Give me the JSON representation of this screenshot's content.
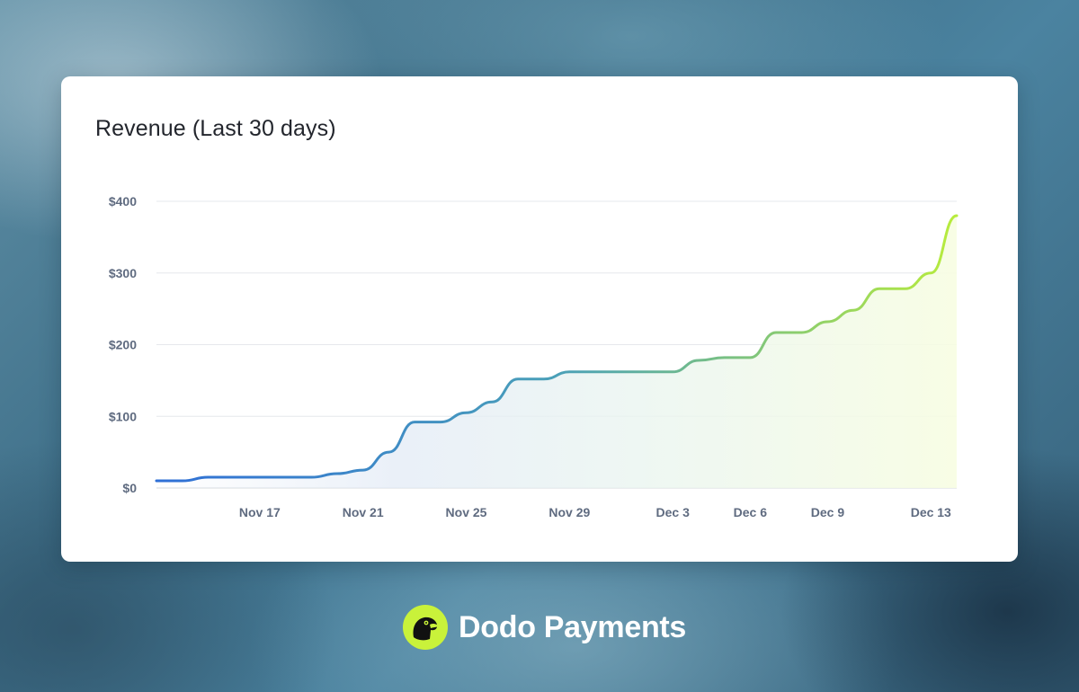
{
  "card": {
    "title": "Revenue (Last 30 days)"
  },
  "brand": {
    "name": "Dodo Payments",
    "logo_icon": "dodo-bird-logo-icon",
    "accent_color": "#c9f23a"
  },
  "chart_data": {
    "type": "area",
    "title": "Revenue (Last 30 days)",
    "xlabel": "",
    "ylabel": "",
    "x_range": [
      "Nov 13",
      "Dec 14"
    ],
    "ylim": [
      0,
      400
    ],
    "yticks": [
      0,
      100,
      200,
      300,
      400
    ],
    "ytick_labels": [
      "$0",
      "$100",
      "$200",
      "$300",
      "$400"
    ],
    "xticks": [
      "Nov 17",
      "Nov 21",
      "Nov 25",
      "Nov 29",
      "Dec 3",
      "Dec 6",
      "Dec 9",
      "Dec 13"
    ],
    "grid": "horizontal",
    "legend": "none",
    "line_gradient": [
      "#2f6fd6",
      "#4aa0b8",
      "#b8ec3c"
    ],
    "series": [
      {
        "x": [
          "Nov 13",
          "Nov 14",
          "Nov 15",
          "Nov 16",
          "Nov 17",
          "Nov 18",
          "Nov 19",
          "Nov 20",
          "Nov 21",
          "Nov 22",
          "Nov 23",
          "Nov 24",
          "Nov 25",
          "Nov 26",
          "Nov 27",
          "Nov 28",
          "Nov 29",
          "Nov 30",
          "Dec 1",
          "Dec 2",
          "Dec 3",
          "Dec 4",
          "Dec 5",
          "Dec 6",
          "Dec 7",
          "Dec 8",
          "Dec 9",
          "Dec 10",
          "Dec 11",
          "Dec 12",
          "Dec 13",
          "Dec 14"
        ],
        "values": [
          10,
          10,
          15,
          15,
          15,
          15,
          15,
          20,
          25,
          50,
          92,
          92,
          105,
          120,
          152,
          152,
          162,
          162,
          162,
          162,
          162,
          178,
          182,
          182,
          217,
          217,
          232,
          248,
          278,
          278,
          300,
          380
        ]
      }
    ]
  }
}
